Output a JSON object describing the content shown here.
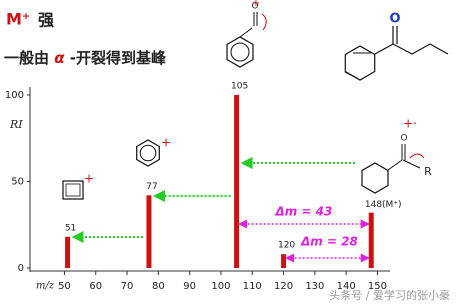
{
  "chart_data": {
    "type": "bar",
    "title": {
      "emphasis": "M⁺",
      "text": "强"
    },
    "subtitle": {
      "before": "一般由 ",
      "alpha": "α",
      "after": " -开裂得到基峰"
    },
    "y_label": "RI",
    "x_label": "m/z",
    "x": [
      51,
      77,
      105,
      120,
      148
    ],
    "values": [
      18,
      42,
      100,
      8,
      32
    ],
    "peak_labels": [
      "51",
      "77",
      "105",
      "120",
      "148(M⁺)"
    ],
    "color": "#cc1111",
    "xlim": [
      39,
      154
    ],
    "xticks": [
      50,
      60,
      70,
      80,
      90,
      100,
      110,
      120,
      130,
      140,
      150
    ],
    "ylim": [
      0,
      100
    ],
    "yticks": [
      0,
      50,
      100
    ],
    "grid": false,
    "annotations": [
      "Δm = 43",
      "Δm = 28"
    ],
    "structures": {
      "acylium_oxygen": "O",
      "acylium_charge": "+",
      "ketone_oxygen": "O",
      "phenyl_charge": "+",
      "cyclobutadiene_charge": "+",
      "molecular_ion_oxygen": "O",
      "molecular_ion_charge": "+·",
      "molecular_ion_group": "R"
    },
    "watermark": "头条号 / 爱学习的张小豪"
  }
}
